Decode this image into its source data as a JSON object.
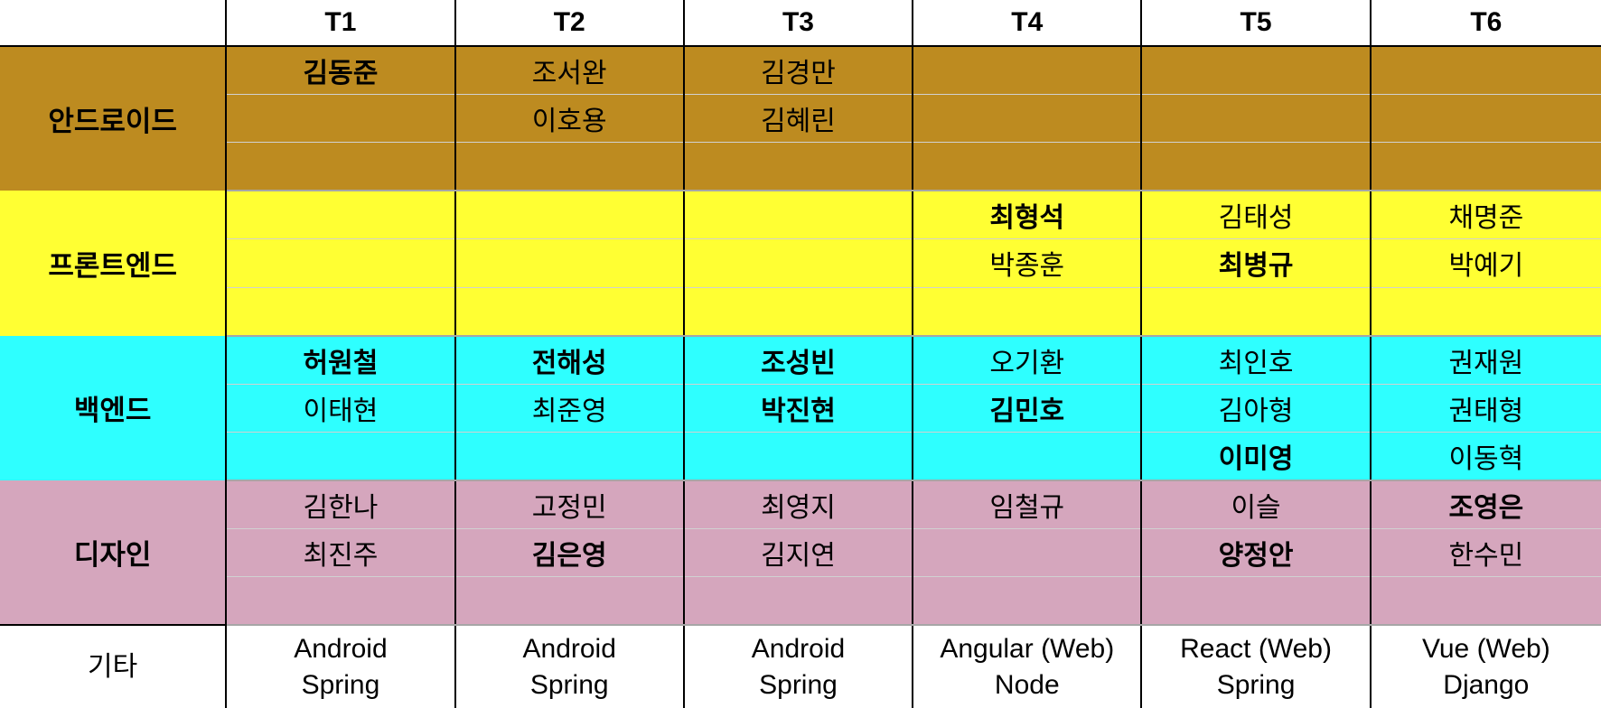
{
  "colors": {
    "android": "#bd8b20",
    "frontend": "#ffff33",
    "backend": "#2effff",
    "design": "#d5a6bd",
    "grid": "#000000",
    "background": "#ffffff"
  },
  "teams": [
    "T1",
    "T2",
    "T3",
    "T4",
    "T5",
    "T6"
  ],
  "roles": [
    {
      "key": "android",
      "label": "안드로이드",
      "rows": [
        [
          {
            "name": "김동준",
            "lead": true
          },
          {
            "name": "조서완",
            "lead": false
          },
          {
            "name": "김경만",
            "lead": false
          },
          {
            "name": "",
            "lead": false
          },
          {
            "name": "",
            "lead": false
          },
          {
            "name": "",
            "lead": false
          }
        ],
        [
          {
            "name": "",
            "lead": false
          },
          {
            "name": "이호용",
            "lead": false
          },
          {
            "name": "김혜린",
            "lead": false
          },
          {
            "name": "",
            "lead": false
          },
          {
            "name": "",
            "lead": false
          },
          {
            "name": "",
            "lead": false
          }
        ],
        [
          {
            "name": "",
            "lead": false
          },
          {
            "name": "",
            "lead": false
          },
          {
            "name": "",
            "lead": false
          },
          {
            "name": "",
            "lead": false
          },
          {
            "name": "",
            "lead": false
          },
          {
            "name": "",
            "lead": false
          }
        ]
      ]
    },
    {
      "key": "frontend",
      "label": "프론트엔드",
      "rows": [
        [
          {
            "name": "",
            "lead": false
          },
          {
            "name": "",
            "lead": false
          },
          {
            "name": "",
            "lead": false
          },
          {
            "name": "최형석",
            "lead": true
          },
          {
            "name": "김태성",
            "lead": false
          },
          {
            "name": "채명준",
            "lead": false
          }
        ],
        [
          {
            "name": "",
            "lead": false
          },
          {
            "name": "",
            "lead": false
          },
          {
            "name": "",
            "lead": false
          },
          {
            "name": "박종훈",
            "lead": false
          },
          {
            "name": "최병규",
            "lead": true
          },
          {
            "name": "박예기",
            "lead": false
          }
        ],
        [
          {
            "name": "",
            "lead": false
          },
          {
            "name": "",
            "lead": false
          },
          {
            "name": "",
            "lead": false
          },
          {
            "name": "",
            "lead": false
          },
          {
            "name": "",
            "lead": false
          },
          {
            "name": "",
            "lead": false
          }
        ]
      ]
    },
    {
      "key": "backend",
      "label": "백엔드",
      "rows": [
        [
          {
            "name": "허원철",
            "lead": true
          },
          {
            "name": "전해성",
            "lead": true
          },
          {
            "name": "조성빈",
            "lead": true
          },
          {
            "name": "오기환",
            "lead": false
          },
          {
            "name": "최인호",
            "lead": false
          },
          {
            "name": "권재원",
            "lead": false
          }
        ],
        [
          {
            "name": "이태현",
            "lead": false
          },
          {
            "name": "최준영",
            "lead": false
          },
          {
            "name": "박진현",
            "lead": true
          },
          {
            "name": "김민호",
            "lead": true
          },
          {
            "name": "김아형",
            "lead": false
          },
          {
            "name": "권태형",
            "lead": false
          }
        ],
        [
          {
            "name": "",
            "lead": false
          },
          {
            "name": "",
            "lead": false
          },
          {
            "name": "",
            "lead": false
          },
          {
            "name": "",
            "lead": false
          },
          {
            "name": "이미영",
            "lead": true
          },
          {
            "name": "이동혁",
            "lead": false
          }
        ]
      ]
    },
    {
      "key": "design",
      "label": "디자인",
      "rows": [
        [
          {
            "name": "김한나",
            "lead": false
          },
          {
            "name": "고정민",
            "lead": false
          },
          {
            "name": "최영지",
            "lead": false
          },
          {
            "name": "임철규",
            "lead": false
          },
          {
            "name": "이슬",
            "lead": false
          },
          {
            "name": "조영은",
            "lead": true
          }
        ],
        [
          {
            "name": "최진주",
            "lead": false
          },
          {
            "name": "김은영",
            "lead": true
          },
          {
            "name": "김지연",
            "lead": false
          },
          {
            "name": "",
            "lead": false
          },
          {
            "name": "양정안",
            "lead": true
          },
          {
            "name": "한수민",
            "lead": false
          }
        ],
        [
          {
            "name": "",
            "lead": false
          },
          {
            "name": "",
            "lead": false
          },
          {
            "name": "",
            "lead": false
          },
          {
            "name": "",
            "lead": false
          },
          {
            "name": "",
            "lead": false
          },
          {
            "name": "",
            "lead": false
          }
        ]
      ]
    }
  ],
  "footer": {
    "label": "기타",
    "stacks": [
      {
        "client": "Android",
        "server": "Spring"
      },
      {
        "client": "Android",
        "server": "Spring"
      },
      {
        "client": "Android",
        "server": "Spring"
      },
      {
        "client": "Angular (Web)",
        "server": "Node"
      },
      {
        "client": "React (Web)",
        "server": "Spring"
      },
      {
        "client": "Vue (Web)",
        "server": "Django"
      }
    ]
  }
}
